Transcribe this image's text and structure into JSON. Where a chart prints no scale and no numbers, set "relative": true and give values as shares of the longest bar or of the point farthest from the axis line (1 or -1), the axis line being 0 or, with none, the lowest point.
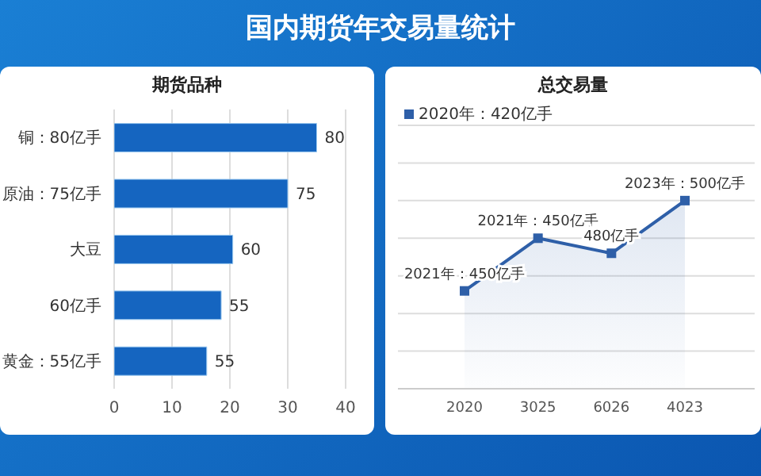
{
  "chart_data": [
    {
      "type": "bar",
      "orientation": "horizontal",
      "title": "国内期货年交易量统计",
      "subtitle": "期货品种",
      "categories": [
        "铜：80亿手",
        "原油：75亿手",
        "大豆",
        "60亿手",
        "黄金：55亿手"
      ],
      "values": [
        35,
        30,
        20.5,
        18.5,
        16
      ],
      "annotations": [
        {
          "text": "80",
          "x": 35,
          "y": "铜：80亿手"
        },
        {
          "text": "75",
          "x": 30,
          "y": "原油：75亿手"
        },
        {
          "text": "60",
          "x": 20.5,
          "y": "大豆"
        },
        {
          "text": "55",
          "x": 18.5,
          "y": "60亿手"
        },
        {
          "text": "55",
          "x": 16,
          "y": "黄金：55亿手"
        }
      ],
      "color": "#1565c0",
      "xlim": [
        0,
        40
      ],
      "xticks": [
        0,
        10,
        20,
        30,
        40
      ],
      "grid": "x"
    },
    {
      "type": "area",
      "title": "总交易量",
      "categories": [
        "2020",
        "3025",
        "6026",
        "4023"
      ],
      "relative": true,
      "series": [
        {
          "name": "2020年：420亿手",
          "color": "#2e5fa8",
          "values": [
            0.52,
            0.8,
            0.72,
            1
          ]
        }
      ],
      "marker": "square",
      "legend": "top left",
      "grid": "y",
      "annotations": [
        {
          "text": "2021年：450亿手",
          "x": "2020",
          "y": 0.52
        },
        {
          "text": "2021年：450亿手",
          "x": "3025",
          "y": 0.8
        },
        {
          "text": "480亿手",
          "x": "6026",
          "y": 0.72
        },
        {
          "text": "2023年：500亿手",
          "x": "4023",
          "y": 1
        }
      ]
    }
  ]
}
